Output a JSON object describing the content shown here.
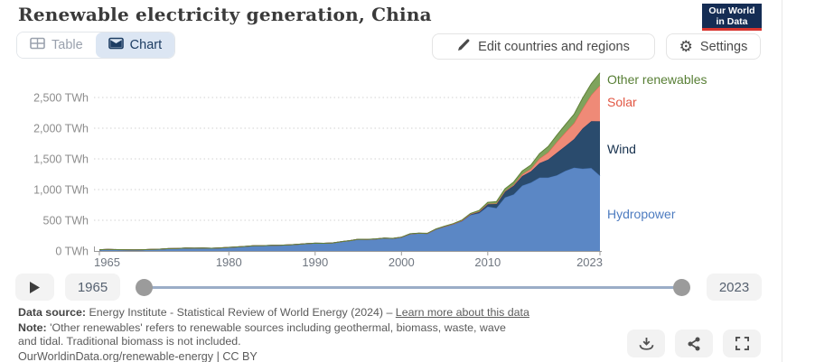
{
  "header": {
    "title": "Renewable electricity generation, China",
    "logo_line1": "Our World",
    "logo_line2": "in Data",
    "tab_table": "Table",
    "tab_chart": "Chart",
    "edit_button": "Edit countries and regions",
    "settings_button": "Settings",
    "gear_glyph": "⚙"
  },
  "chart_data": {
    "type": "area",
    "stacked": true,
    "title": "Renewable electricity generation, China",
    "unit": "TWh",
    "xlabel": "",
    "ylabel": "",
    "ylim": [
      0,
      2900
    ],
    "grid": "dotted-horizontal",
    "legend_position": "right-of-plot",
    "x": [
      1965,
      1966,
      1967,
      1968,
      1969,
      1970,
      1971,
      1972,
      1973,
      1974,
      1975,
      1976,
      1977,
      1978,
      1979,
      1980,
      1981,
      1982,
      1983,
      1984,
      1985,
      1986,
      1987,
      1988,
      1989,
      1990,
      1991,
      1992,
      1993,
      1994,
      1995,
      1996,
      1997,
      1998,
      1999,
      2000,
      2001,
      2002,
      2003,
      2004,
      2005,
      2006,
      2007,
      2008,
      2009,
      2010,
      2011,
      2012,
      2013,
      2014,
      2015,
      2016,
      2017,
      2018,
      2019,
      2020,
      2021,
      2022,
      2023
    ],
    "series": [
      {
        "name": "Hydropower",
        "area_color": "#5b87c5",
        "line_color": "#4a79bd",
        "label_color": "#4e7cc0",
        "legend_top": 229,
        "values": [
          20.2,
          26.5,
          21.6,
          19.9,
          18.1,
          20.5,
          25.1,
          28.8,
          38.9,
          41.5,
          47.6,
          45.6,
          47.7,
          44.6,
          50.1,
          58.2,
          65.5,
          74.4,
          86.4,
          86.8,
          92.4,
          94.5,
          100.0,
          109.2,
          118.4,
          126.7,
          124.8,
          130.7,
          151.8,
          167.4,
          190.6,
          188.0,
          196.0,
          208.0,
          203.8,
          222.4,
          277.4,
          287.9,
          283.7,
          353.5,
          397.0,
          435.8,
          485.3,
          585.2,
          615.6,
          722.2,
          698.9,
          872.1,
          920.3,
          1064.3,
          1112.7,
          1193.4,
          1194.5,
          1232.1,
          1304.4,
          1355.2,
          1340.0,
          1352.2,
          1226.3
        ]
      },
      {
        "name": "Wind",
        "area_color": "#2a4b6d",
        "line_color": "#1d3d63",
        "label_color": "#16304d",
        "legend_top": 157,
        "values": [
          0,
          0,
          0,
          0,
          0,
          0,
          0,
          0,
          0,
          0,
          0,
          0,
          0,
          0,
          0,
          0,
          0,
          0,
          0,
          0,
          0,
          0,
          0,
          0,
          0,
          0,
          0,
          0,
          0,
          0,
          0.1,
          0.1,
          0.2,
          0.3,
          0.5,
          0.6,
          0.8,
          1.0,
          1.2,
          1.7,
          2.1,
          3.9,
          9.4,
          14.8,
          26.9,
          44.6,
          70.3,
          95.9,
          141.2,
          156.1,
          185.8,
          237.1,
          295.0,
          365.8,
          405.7,
          466.5,
          655.6,
          762.6,
          885.9
        ]
      },
      {
        "name": "Solar",
        "area_color": "#ef8a77",
        "line_color": "#e4604e",
        "label_color": "#e25744",
        "legend_top": 105,
        "values": [
          0,
          0,
          0,
          0,
          0,
          0,
          0,
          0,
          0,
          0,
          0,
          0,
          0,
          0,
          0,
          0,
          0,
          0,
          0,
          0,
          0,
          0,
          0,
          0,
          0,
          0,
          0,
          0,
          0,
          0,
          0,
          0,
          0,
          0,
          0,
          0,
          0,
          0,
          0,
          0,
          0,
          0,
          0.1,
          0.2,
          0.3,
          0.7,
          2.6,
          6.3,
          15.5,
          29.2,
          39.5,
          75.3,
          117.8,
          176.9,
          223.8,
          261.1,
          327.0,
          427.7,
          584.2
        ]
      },
      {
        "name": "Other renewables",
        "area_color": "#7fa35c",
        "line_color": "#5f8038",
        "label_color": "#587f35",
        "legend_top": 80,
        "values": [
          0,
          0,
          0,
          0,
          0,
          0,
          0,
          0,
          0,
          0,
          0,
          0,
          0,
          0,
          0,
          0,
          0,
          0,
          0,
          0,
          0,
          0,
          0,
          0,
          0,
          0.1,
          0.1,
          0.2,
          0.2,
          0.3,
          0.8,
          0.9,
          1.0,
          1.1,
          1.3,
          2.4,
          2.6,
          2.9,
          3.2,
          4.0,
          5.3,
          6.5,
          8.1,
          11.7,
          17.3,
          24.8,
          31.5,
          38.3,
          46.5,
          52.7,
          62.7,
          79.0,
          94.9,
          111.1,
          126.4,
          143.0,
          169.9,
          184.3,
          204.6
        ]
      }
    ],
    "y_ticks": [
      {
        "v": 0,
        "label": "0 TWh"
      },
      {
        "v": 500,
        "label": "500 TWh"
      },
      {
        "v": 1000,
        "label": "1,000 TWh"
      },
      {
        "v": 1500,
        "label": "1,500 TWh"
      },
      {
        "v": 2000,
        "label": "2,000 TWh"
      },
      {
        "v": 2500,
        "label": "2,500 TWh"
      }
    ],
    "x_ticks": [
      {
        "v": 1965,
        "label": "1965"
      },
      {
        "v": 1980,
        "label": "1980"
      },
      {
        "v": 1990,
        "label": "1990"
      },
      {
        "v": 2000,
        "label": "2000"
      },
      {
        "v": 2010,
        "label": "2010"
      },
      {
        "v": 2023,
        "label": "2023"
      }
    ]
  },
  "timeline": {
    "start_year": "1965",
    "end_year": "2023"
  },
  "footer": {
    "source_label": "Data source:",
    "source_text": " Energy Institute - Statistical Review of World Energy (2024) – ",
    "source_link": "Learn more about this data",
    "note_label": "Note:",
    "note_text": " 'Other renewables' refers to renewable sources including geothermal, biomass, waste, wave and tidal. Traditional biomass is not included.",
    "cc_line": "OurWorldinData.org/renewable-energy | CC BY"
  }
}
